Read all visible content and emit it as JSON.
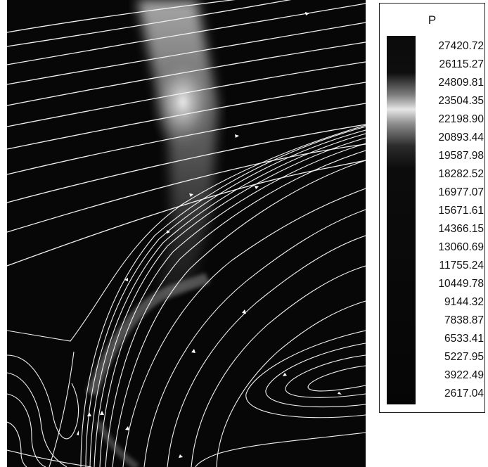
{
  "legend": {
    "title": "P",
    "ticks": [
      "27420.72",
      "26115.27",
      "24809.81",
      "23504.35",
      "22198.90",
      "20893.44",
      "19587.98",
      "18282.52",
      "16977.07",
      "15671.61",
      "14366.15",
      "13060.69",
      "11755.24",
      "10449.78",
      "9144.32",
      "7838.87",
      "6533.41",
      "5227.95",
      "3922.49",
      "2617.04"
    ]
  },
  "colors": {
    "background": "#070707",
    "streamline": "#f2f2f2",
    "high_pressure": "#e8e8e8"
  }
}
